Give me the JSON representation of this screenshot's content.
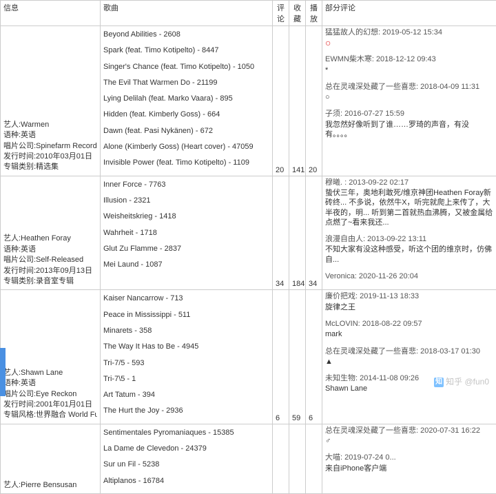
{
  "headers": {
    "info": "信息",
    "songs": "歌曲",
    "comments": "评论",
    "favs": "收藏",
    "plays": "播放",
    "reviews": "部分评论"
  },
  "rows": [
    {
      "info": {
        "artist_label": "艺人:",
        "artist": "Warmen",
        "lang_label": "语种:",
        "lang": "英语",
        "label_label": "唱片公司:",
        "label": "Spinefarm Records",
        "release_label": "发行时间:",
        "release": "2010年03月01日",
        "type_label": "专辑类别:",
        "type": "精选集"
      },
      "songs": [
        "Beyond Abilities - 2608",
        "Spark (feat. Timo Kotipelto) - 8447",
        "Singer's Chance (feat. Timo Kotipelto) - 1050",
        "The Evil That Warmen Do - 21199",
        "Lying Delilah (feat. Marko Vaara) - 895",
        "Hidden (feat. Kimberly Goss) - 664",
        "Dawn (feat. Pasi Nykänen) - 672",
        "Alone (Kimberly Goss) (Heart cover) - 47059",
        "Invisible Power (feat. Timo Kotipelto) - 1109"
      ],
      "stats": {
        "comments": "20",
        "favs": "141",
        "plays": "20"
      },
      "reviews": [
        {
          "header": "猛猛故人的幻想: 2019-05-12 15:34",
          "body": "○",
          "red": true
        },
        {
          "header": "EWMN柴木寒: 2018-12-12 09:43",
          "body": "*"
        },
        {
          "header": "总在灵魂深处藏了一些喜悲: 2018-04-09 11:31",
          "body": "○"
        },
        {
          "header": "子须: 2016-07-27 15:59",
          "body": "我忽然好像听到了谁……罗琦的声音，有没有。。。。"
        }
      ]
    },
    {
      "info": {
        "artist_label": "艺人:",
        "artist": "Heathen Foray",
        "lang_label": "语种:",
        "lang": "英语",
        "label_label": "唱片公司:",
        "label": "Self-Released",
        "release_label": "发行时间:",
        "release": "2013年09月13日",
        "type_label": "专辑类别:",
        "type": "录音室专辑"
      },
      "songs": [
        "Inner Force - 7763",
        "Illusion - 2321",
        "Weisheitskrieg - 1418",
        "Wahrheit - 1718",
        "Glut Zu Flamme - 2837",
        "Mei Laund - 1087"
      ],
      "stats": {
        "comments": "34",
        "favs": "184",
        "plays": "34"
      },
      "reviews": [
        {
          "header": "穆曦. : 2013-09-22 02:17",
          "body": "蛰伏三年，奥地利敢死/维京神团Heathen Foray新砖终... 不多说，依然牛X，听完就爬上来传了，大半夜的，明... 听到第二首就热血沸腾，又被金属给点燃了~看来我还..."
        },
        {
          "header": "浪漫自由人: 2013-09-22 13:11",
          "body": "不知大家有没这种感受，听这个团的维京时，仿佛自..."
        },
        {
          "header": "Veronica: 2020-11-26 20:04",
          "body": ""
        }
      ]
    },
    {
      "info": {
        "artist_label": "艺人:",
        "artist": "Shawn Lane",
        "lang_label": "语种:",
        "lang": "英语",
        "label_label": "唱片公司:",
        "label": "Eye Reckon",
        "release_label": "发行时间:",
        "release": "2001年01月01日",
        "style_label": "专辑风格:",
        "style": "世界融合 World Fusion"
      },
      "songs": [
        "Kaiser Nancarrow - 713",
        "Peace in Mississippi - 511",
        "Minarets - 358",
        "The Way It Has to Be - 4945",
        "Tri-7/5 - 593",
        "Tri-7\\5 - 1",
        "Art Tatum - 394",
        "The Hurt the Joy - 2936"
      ],
      "stats": {
        "comments": "6",
        "favs": "59",
        "plays": "6"
      },
      "reviews": [
        {
          "header": "廉价把戏: 2019-11-13 18:33",
          "body": "旋律之王"
        },
        {
          "header": "McLOVIN: 2018-08-22 09:57",
          "body": "mark"
        },
        {
          "header": "总在灵魂深处藏了一些喜悲: 2018-03-17 01:30",
          "body": "▲"
        },
        {
          "header": "未知生物: 2014-11-08 09:26",
          "body": "Shawn Lane"
        }
      ]
    },
    {
      "info": {
        "artist_label": "艺人:",
        "artist": "Pierre Bensusan"
      },
      "songs": [
        "Sentimentales Pyromaniaques - 15385",
        "La Dame de Clevedon - 24379",
        "Sur un Fil - 5238",
        "Altiplanos - 16784"
      ],
      "stats": {
        "comments": "",
        "favs": "",
        "plays": ""
      },
      "reviews": [
        {
          "header": "总在灵魂深处藏了一些喜悲: 2020-07-31 16:22",
          "body": "♂"
        },
        {
          "header": "大喵: 2019-07-24 0...",
          "body": "来自iPhone客户端"
        }
      ]
    }
  ],
  "watermark": "知乎 @fun0"
}
